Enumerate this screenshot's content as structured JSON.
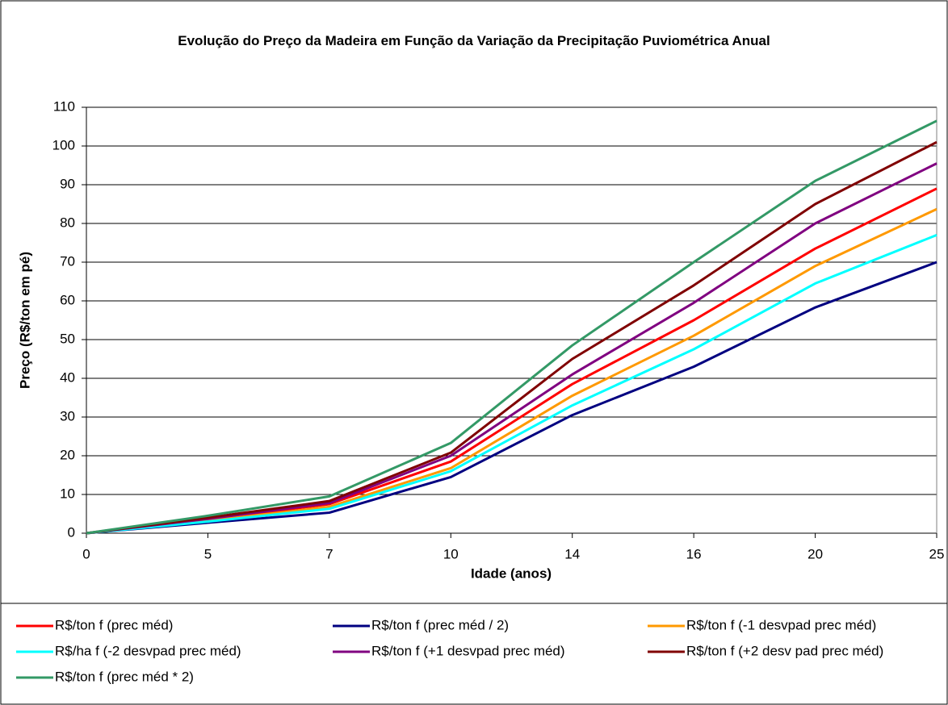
{
  "chart_data": {
    "type": "line",
    "title": "Evolução do Preço da Madeira em Função da Variação da Precipitação Puviométrica Anual",
    "x_label": "Idade (anos)",
    "y_label": "Preço (R$/ton em pé)",
    "categories": [
      "0",
      "5",
      "7",
      "10",
      "14",
      "16",
      "20",
      "25"
    ],
    "ylim": [
      0,
      110
    ],
    "yticks": [
      0,
      10,
      20,
      30,
      40,
      50,
      60,
      70,
      80,
      90,
      100,
      110
    ],
    "grid": true,
    "series": [
      {
        "name": "R$/ton f (prec méd)",
        "color": "#ff0000",
        "values": [
          0,
          3.5,
          7.5,
          18.5,
          38.5,
          55,
          73.5,
          89
        ]
      },
      {
        "name": "R$/ton f (prec méd / 2)",
        "color": "#000080",
        "values": [
          0,
          2.7,
          5.3,
          14.5,
          30.5,
          43,
          58.3,
          70
        ]
      },
      {
        "name": "R$/ton f (-1 desvpad prec méd)",
        "color": "#ff9900",
        "values": [
          0,
          3.2,
          6.8,
          16.8,
          35.5,
          51,
          69,
          83.7
        ]
      },
      {
        "name": "R$/ha f (-2 desvpad prec méd)",
        "color": "#00ffff",
        "values": [
          0,
          3,
          6.3,
          16,
          33,
          47.5,
          64.5,
          77
        ]
      },
      {
        "name": "R$/ton f (+1 desvpad prec méd)",
        "color": "#800080",
        "values": [
          0,
          3.7,
          7.8,
          20,
          41,
          59.5,
          80,
          95.5
        ]
      },
      {
        "name": "R$/ton f (+2 desv pad prec méd)",
        "color": "#800000",
        "values": [
          0,
          4,
          8.3,
          20.8,
          45,
          64,
          85,
          101
        ]
      },
      {
        "name": "R$/ton f (prec méd * 2)",
        "color": "#339966",
        "values": [
          0,
          4.5,
          9.5,
          23.3,
          48.5,
          70,
          91,
          106.5
        ]
      }
    ]
  }
}
